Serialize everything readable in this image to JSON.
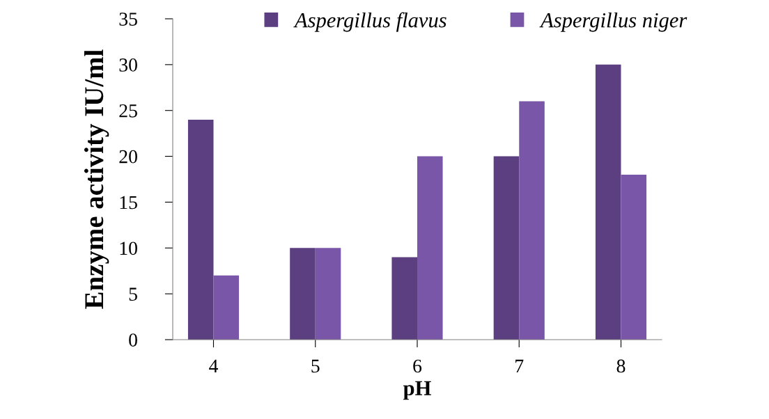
{
  "chart_data": {
    "type": "bar",
    "xlabel": "pH",
    "ylabel": "Enzyme activity IU/ml",
    "categories": [
      "4",
      "5",
      "6",
      "7",
      "8"
    ],
    "series": [
      {
        "name": "Aspergillus flavus",
        "color": "#5b3f80",
        "values": [
          24,
          10,
          9,
          20,
          30
        ]
      },
      {
        "name": "Aspergillus niger",
        "color": "#7a56a8",
        "values": [
          7,
          10,
          20,
          26,
          18
        ]
      }
    ],
    "ylim": [
      0,
      35
    ],
    "yticks": [
      0,
      5,
      10,
      15,
      20,
      25,
      30,
      35
    ],
    "grid": false,
    "legend": "top"
  }
}
